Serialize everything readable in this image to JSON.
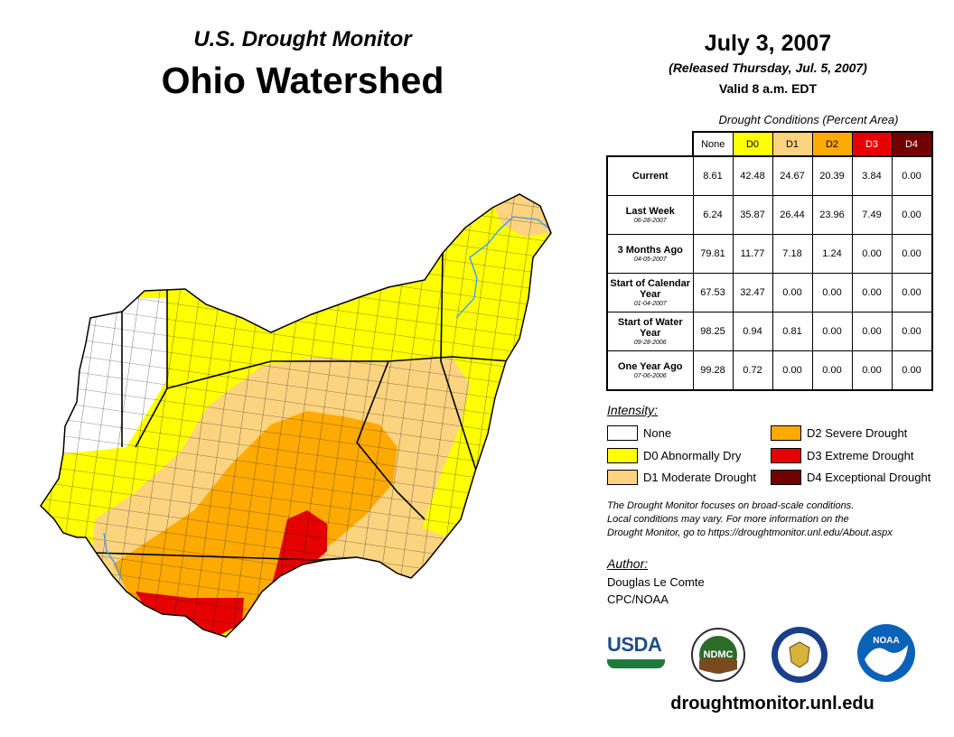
{
  "header": {
    "subtitle": "U.S. Drought Monitor",
    "region": "Ohio Watershed",
    "date": "July 3, 2007",
    "released": "(Released Thursday, Jul. 5, 2007)",
    "valid": "Valid 8 a.m. EDT"
  },
  "table": {
    "title": "Drought Conditions (Percent Area)",
    "columns": [
      "None",
      "D0",
      "D1",
      "D2",
      "D3",
      "D4"
    ],
    "rows": [
      {
        "label": "Current",
        "date": "",
        "values": [
          "8.61",
          "42.48",
          "24.67",
          "20.39",
          "3.84",
          "0.00"
        ]
      },
      {
        "label": "Last Week",
        "date": "06-28-2007",
        "values": [
          "6.24",
          "35.87",
          "26.44",
          "23.96",
          "7.49",
          "0.00"
        ]
      },
      {
        "label": "3 Months Ago",
        "date": "04-05-2007",
        "values": [
          "79.81",
          "11.77",
          "7.18",
          "1.24",
          "0.00",
          "0.00"
        ]
      },
      {
        "label": "Start of Calendar Year",
        "date": "01-04-2007",
        "values": [
          "67.53",
          "32.47",
          "0.00",
          "0.00",
          "0.00",
          "0.00"
        ]
      },
      {
        "label": "Start of Water Year",
        "date": "09-28-2006",
        "values": [
          "98.25",
          "0.94",
          "0.81",
          "0.00",
          "0.00",
          "0.00"
        ]
      },
      {
        "label": "One Year Ago",
        "date": "07-06-2006",
        "values": [
          "99.28",
          "0.72",
          "0.00",
          "0.00",
          "0.00",
          "0.00"
        ]
      }
    ]
  },
  "legend": {
    "heading": "Intensity:",
    "items": [
      {
        "label": "None",
        "color": "#ffffff"
      },
      {
        "label": "D0 Abnormally Dry",
        "color": "#ffff00"
      },
      {
        "label": "D1 Moderate Drought",
        "color": "#fcd37f"
      },
      {
        "label": "D2 Severe Drought",
        "color": "#ffaa00"
      },
      {
        "label": "D3 Extreme Drought",
        "color": "#e60000"
      },
      {
        "label": "D4 Exceptional Drought",
        "color": "#730000"
      }
    ]
  },
  "note": {
    "line1": "The Drought Monitor focuses on broad-scale conditions.",
    "line2": "Local conditions may vary. For more information on the",
    "line3": "Drought Monitor, go to https://droughtmonitor.unl.edu/About.aspx"
  },
  "author": {
    "heading": "Author:",
    "name": "Douglas Le Comte",
    "org": "CPC/NOAA"
  },
  "logos": {
    "usda": "USDA",
    "ndmc": "NDMC",
    "noaa": "NOAA"
  },
  "website": "droughtmonitor.unl.edu",
  "colors": {
    "none": "#ffffff",
    "d0": "#ffff00",
    "d1": "#fcd37f",
    "d2": "#ffaa00",
    "d3": "#e60000",
    "d4": "#730000",
    "river": "#3399ff"
  }
}
